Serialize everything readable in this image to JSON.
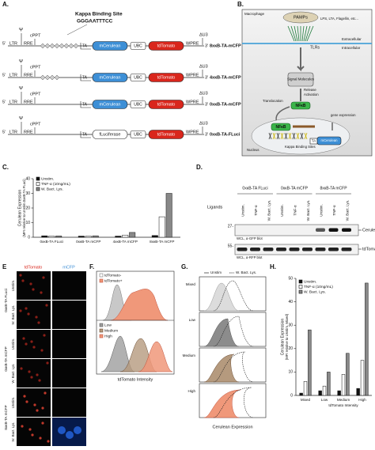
{
  "panel_a": {
    "label": "A.",
    "site_title": "Kappa Binding Site",
    "site_seq": "GGGAATTTCC",
    "constructs": [
      {
        "name": "8xκB-TA-mCFP",
        "psi": "Ψ",
        "cppt": "cPPT",
        "end5": "5'",
        "ltr": "LTR",
        "rre": "RRE",
        "ta": "TA",
        "reporter": "mCerulean",
        "ubc": "UBC",
        "td": "tdTomato",
        "wpre": "WPRE",
        "du3": "ΔU3",
        "end3": "3'"
      },
      {
        "name": "4xκB-TA-mCFP",
        "psi": "Ψ",
        "cppt": "cPPT",
        "end5": "5'",
        "ltr": "LTR",
        "rre": "RRE",
        "ta": "TA",
        "reporter": "mCerulean",
        "ubc": "UBC",
        "td": "tdTomato",
        "wpre": "WPRE",
        "du3": "ΔU3",
        "end3": "3'"
      },
      {
        "name": "0xκB-TA-mCFP",
        "psi": "Ψ",
        "cppt": "cPPT",
        "end5": "5'",
        "ltr": "LTR",
        "rre": "RRE",
        "ta": "TA",
        "reporter": "mCerulean",
        "ubc": "UBC",
        "td": "tdTomato",
        "wpre": "WPRE",
        "du3": "ΔU3",
        "end3": "3'"
      },
      {
        "name": "0xκB-TA-FLuci",
        "psi": "Ψ",
        "cppt": "cPPT",
        "end5": "5'",
        "ltr": "LTR",
        "rre": "RRE",
        "ta": "TA",
        "reporter": "fLuciferase",
        "ubc": "UBC",
        "td": "tdTomato",
        "wpre": "WPRE",
        "du3": "ΔU3",
        "end3": "3'"
      }
    ]
  },
  "panel_b": {
    "label": "B.",
    "macrophage": "Macrophage",
    "pamps": "PAMPs",
    "ligands": "LPS, LTA, Flagellin, etc...",
    "tlrs": "TLRs",
    "extracellular": "Extracellular",
    "intracellular": "Intracellular",
    "signal": "Signal Molecules",
    "release": "Release",
    "activation": "Activation",
    "translocation": "Translocation",
    "nfkb": "NFκB",
    "nfkb_nucleus": "NFκB",
    "gene_expression": "gene expression",
    "kappa_sites": "Kappa Binding Sites",
    "ta": "TA",
    "mcerulean": "mCerulean",
    "nucleus": "Nucleus"
  },
  "panel_c": {
    "label": "C."
  },
  "panel_d": {
    "label": "D.",
    "groups": [
      "0xκB-TA FLuci",
      "0xκB-TA mCFP",
      "8xκB-TA mCFP"
    ],
    "ligands_label": "Ligands",
    "lanes": [
      "Unstim.",
      "TNF-α",
      "W. Bact. Lys.",
      "Unstim.",
      "TNF-α",
      "W. Bact. Lys.",
      "Unstim.",
      "TNF-α",
      "W. Bact. Lys."
    ],
    "marker_top": "27-",
    "marker_bottom": "55-",
    "band_top": "Cerulean",
    "band_bottom": "tdTomato",
    "blot_top": "WCL, α-GFP blot",
    "blot_bottom": "WCL, α-RFP blot"
  },
  "panel_e": {
    "label": "E",
    "columns": [
      "tdTomato",
      "mCFP"
    ],
    "constructs": [
      "0xκB-TA FLuci",
      "0xκB-TA mCFP",
      "8xκB-TA mCFP"
    ],
    "conditions": [
      "Unstim.",
      "W. Bact. Lys.",
      "Unstim.",
      "W. Bact. Lys.",
      "Unstim.",
      "W. Bact. Lys."
    ]
  },
  "panel_f": {
    "label": "F.",
    "legend_top": [
      "tdTomato-",
      "tdTomato+"
    ],
    "legend_bottom": [
      "Low",
      "Medium",
      "High"
    ],
    "xlabel": "tdTomato Intensity"
  },
  "panel_g": {
    "label": "G.",
    "legend": [
      "Unstim",
      "W. Bact. Lys."
    ],
    "rows": [
      "Mixed",
      "Low",
      "Medium",
      "High"
    ],
    "xlabel": "Cerulean Expression"
  },
  "panel_h": {
    "label": "H."
  },
  "chart_data": [
    {
      "type": "bar",
      "ylabel": [
        "Cerulean Expression",
        "(MFI relative to Unstim.0xκB-TA FLuci)"
      ],
      "categories": [
        "0xκB-TA FLuci",
        "0xκB-TA mCFP",
        "4xκB-TA mCFP",
        "8xκB-TA mCFP"
      ],
      "series": [
        {
          "name": "Unstim.",
          "color": "#111111",
          "values": [
            1,
            0.8,
            0.8,
            1.2
          ]
        },
        {
          "name": "TNF-α (10ng/mL)",
          "color": "#ffffff",
          "values": [
            0.8,
            0.8,
            1.5,
            14
          ]
        },
        {
          "name": "W. Bact. Lys.",
          "color": "#888888",
          "values": [
            0.9,
            1.0,
            3.3,
            30
          ]
        }
      ],
      "ylim": [
        0,
        40
      ],
      "yticks": [
        0,
        10,
        20,
        30,
        40
      ]
    },
    {
      "type": "bar",
      "ylabel": [
        "Cerulean Expression",
        "(MFI relative to Unstim. Mixed)"
      ],
      "categories": [
        "Mixed",
        "Low",
        "Medium",
        "High"
      ],
      "xlabel": "tdTomato Intensity",
      "series": [
        {
          "name": "Unstim.",
          "color": "#111111",
          "values": [
            1,
            2,
            2,
            3
          ]
        },
        {
          "name": "TNF-α (10ng/mL)",
          "color": "#ffffff",
          "values": [
            6,
            4,
            9,
            15
          ]
        },
        {
          "name": "W. Bact. Lys.",
          "color": "#888888",
          "values": [
            28,
            10,
            18,
            48
          ]
        }
      ],
      "ylim": [
        0,
        50
      ],
      "yticks": [
        0,
        10,
        20,
        30,
        40,
        50
      ]
    }
  ]
}
